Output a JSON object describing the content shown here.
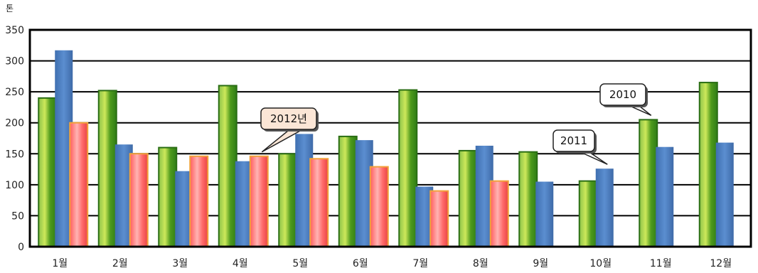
{
  "chart_data": {
    "type": "bar",
    "unit": "톤",
    "ylim": [
      0,
      350
    ],
    "yticks": [
      0,
      50,
      100,
      150,
      200,
      250,
      300,
      350
    ],
    "grid": true,
    "categories": [
      "1월",
      "2월",
      "3월",
      "4월",
      "5월",
      "6월",
      "7월",
      "8월",
      "9월",
      "10월",
      "11월",
      "12월"
    ],
    "series": [
      {
        "name": "2010",
        "color": "#5aa51e",
        "values": [
          240,
          252,
          160,
          260,
          150,
          178,
          253,
          155,
          153,
          106,
          205,
          265
        ]
      },
      {
        "name": "2011",
        "color": "#4f7fc0",
        "values": [
          317,
          165,
          122,
          138,
          182,
          172,
          97,
          163,
          105,
          126,
          161,
          168
        ]
      },
      {
        "name": "2012년",
        "color": "#ff6f6f",
        "values": [
          200,
          150,
          146,
          146,
          142,
          129,
          90,
          106,
          null,
          null,
          null,
          null
        ]
      }
    ],
    "annotations": [
      {
        "label": "2010",
        "series": 0,
        "category": 10
      },
      {
        "label": "2011",
        "series": 1,
        "category": 9
      },
      {
        "label": "2012년",
        "series": 2,
        "category": 3
      }
    ]
  }
}
